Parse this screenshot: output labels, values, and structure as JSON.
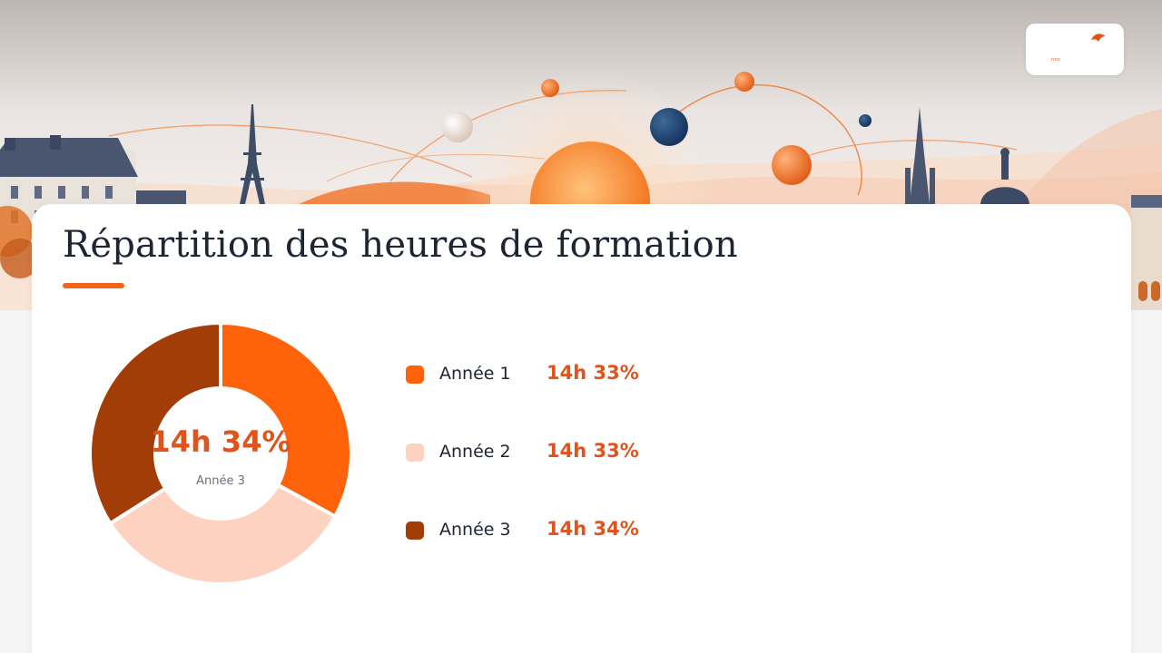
{
  "logo": {
    "text": "nnn"
  },
  "header": {
    "title": "Répartition des heures de formation"
  },
  "donut_center": {
    "value": "14h 34%",
    "label": "Année 3"
  },
  "colors": {
    "accent": "#f26418",
    "value_text": "#e0531b",
    "title_text": "#1f2433"
  },
  "chart_data": {
    "type": "pie",
    "donut": true,
    "title": "Répartition des heures de formation",
    "legend_position": "right",
    "categories": [
      "Année 1",
      "Année 2",
      "Année 3"
    ],
    "values": [
      33,
      33,
      34
    ],
    "value_labels": [
      "14h 33%",
      "14h 33%",
      "14h 34%"
    ],
    "colors": [
      "#ff6208",
      "#fdd2c0",
      "#a33d08"
    ]
  }
}
